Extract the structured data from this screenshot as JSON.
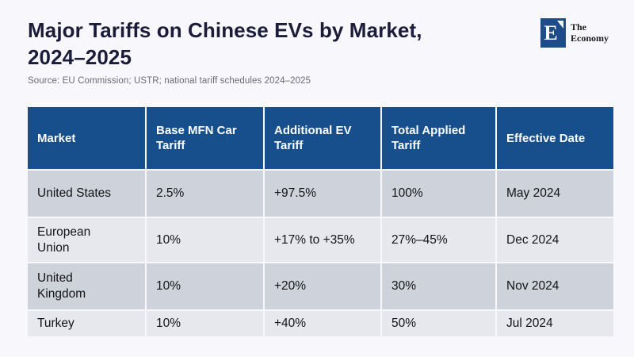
{
  "page": {
    "title_line1": "Major Tariffs on Chinese EVs by Market,",
    "title_line2": "2024–2025",
    "source": "Source: EU Commission; USTR; national tariff schedules 2024–2025"
  },
  "brand": {
    "logo_letter": "E",
    "name_line1": "The",
    "name_line2": "Economy"
  },
  "chart_data": {
    "type": "table",
    "title": "Major Tariffs on Chinese EVs by Market, 2024–2025",
    "source": "EU Commission; USTR; national tariff schedules 2024–2025",
    "columns": [
      "Market",
      "Base MFN Car Tariff",
      "Additional EV Tariff",
      "Total Applied Tariff",
      "Effective Date"
    ],
    "rows": [
      [
        "United States",
        "2.5%",
        "+97.5%",
        "100%",
        "May 2024"
      ],
      [
        "European\nUnion",
        "10%",
        "+17% to +35%",
        "27%–45%",
        "Dec 2024"
      ],
      [
        "United\nKingdom",
        "10%",
        "+20%",
        "30%",
        "Nov 2024"
      ],
      [
        "Turkey",
        "10%",
        "+40%",
        "50%",
        "Jul 2024"
      ]
    ]
  },
  "colors": {
    "header_navy": "#174f8d",
    "row_dark": "#ced2db",
    "row_light": "#e7e8ed",
    "page_background": "#f8f8fc",
    "title_text": "#1b1b3a",
    "source_text": "#6a6a72",
    "logo_navy": "#1c4c8a"
  }
}
